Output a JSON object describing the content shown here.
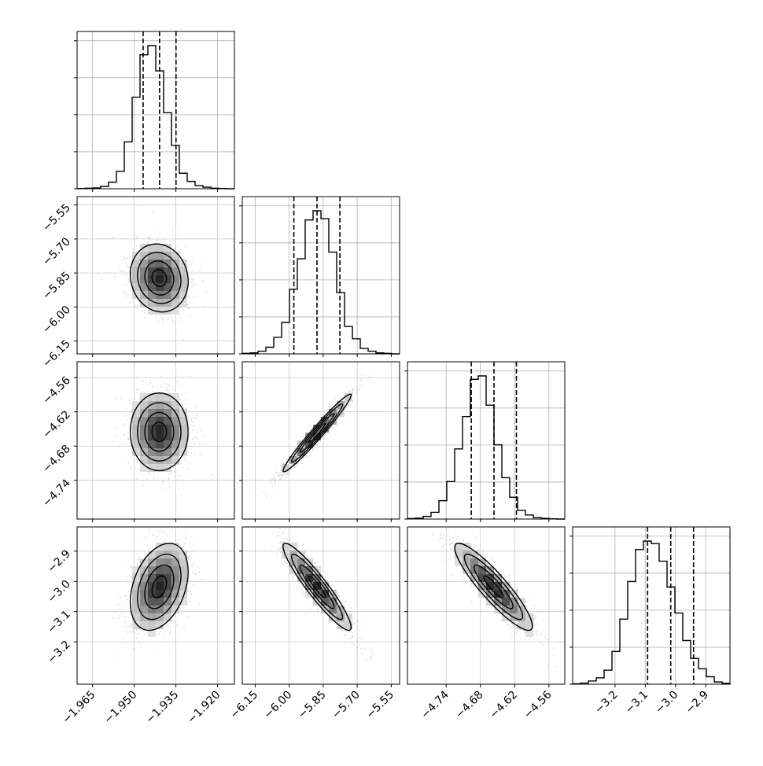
{
  "chart_data": {
    "type": "corner",
    "parameters": [
      {
        "ticks": [
          -1.965,
          -1.95,
          -1.935,
          -1.92
        ],
        "tick_labels": [
          "−1.965",
          "−1.950",
          "−1.935",
          "−1.920"
        ],
        "range": [
          -1.97,
          -1.9145
        ],
        "quantiles": [
          -1.9467,
          -1.9409,
          -1.9351
        ],
        "hist_bins": [
          -1.97,
          -1.9145
        ],
        "hist_counts": [
          1,
          2,
          3,
          9,
          25,
          66,
          178,
          348,
          509,
          544,
          448,
          289,
          165,
          59,
          28,
          12,
          6,
          2,
          1,
          0
        ]
      },
      {
        "ticks": [
          -6.15,
          -6.0,
          -5.85,
          -5.7,
          -5.55
        ],
        "tick_labels": [
          "−6.15",
          "−6.00",
          "−5.85",
          "−5.70",
          "−5.55"
        ],
        "range": [
          -6.2,
          -5.52
        ],
        "quantiles": [
          -5.977,
          -5.877,
          -5.778
        ],
        "hist_counts": [
          2,
          4,
          11,
          27,
          67,
          127,
          261,
          384,
          541,
          578,
          546,
          411,
          248,
          111,
          61,
          22,
          11,
          4,
          2,
          0
        ]
      },
      {
        "ticks": [
          -4.74,
          -4.68,
          -4.62,
          -4.56
        ],
        "tick_labels": [
          "−4.74",
          "−4.68",
          "−4.62",
          "−4.56"
        ],
        "range": [
          -4.805,
          -4.535
        ],
        "quantiles": [
          -4.6955,
          -4.6565,
          -4.618
        ],
        "hist_counts": [
          2,
          4,
          11,
          28,
          76,
          155,
          290,
          424,
          578,
          592,
          471,
          307,
          171,
          90,
          36,
          17,
          6,
          3,
          1,
          0
        ]
      },
      {
        "ticks": [
          -3.2,
          -3.1,
          -3.0,
          -2.9
        ],
        "tick_labels": [
          "−3.2",
          "−3.1",
          "−3.0",
          "−2.9"
        ],
        "range": [
          -3.335,
          -2.825
        ],
        "quantiles": [
          -3.092,
          -3.017,
          -2.943
        ],
        "hist_counts": [
          2,
          5,
          14,
          28,
          62,
          145,
          288,
          454,
          596,
          633,
          622,
          544,
          430,
          315,
          193,
          114,
          68,
          33,
          10,
          4
        ]
      }
    ],
    "pairs": [
      {
        "row": 1,
        "col": 0,
        "center": [
          -1.941,
          -5.872
        ],
        "sd": [
          0.0052,
          0.075
        ],
        "corr": -0.1
      },
      {
        "row": 2,
        "col": 0,
        "center": [
          -1.941,
          -4.655
        ],
        "sd": [
          0.0052,
          0.034
        ],
        "corr": 0.0
      },
      {
        "row": 2,
        "col": 1,
        "center": [
          -5.877,
          -4.657
        ],
        "sd": [
          0.075,
          0.034
        ],
        "corr": 0.975
      },
      {
        "row": 3,
        "col": 0,
        "center": [
          -1.941,
          -3.018
        ],
        "sd": [
          0.0052,
          0.072
        ],
        "corr": 0.35
      },
      {
        "row": 3,
        "col": 1,
        "center": [
          -5.877,
          -3.018
        ],
        "sd": [
          0.075,
          0.072
        ],
        "corr": -0.93
      },
      {
        "row": 3,
        "col": 2,
        "center": [
          -4.657,
          -3.018
        ],
        "sd": [
          0.034,
          0.072
        ],
        "corr": -0.9
      }
    ],
    "contour_levels_sigma": [
      0.5,
      1.0,
      1.5,
      2.0
    ],
    "grid": true,
    "colors": {
      "hist": "#000000",
      "points": "#9a9a9a",
      "density_dark": "#000000",
      "grid": "#b0b0b0"
    }
  }
}
